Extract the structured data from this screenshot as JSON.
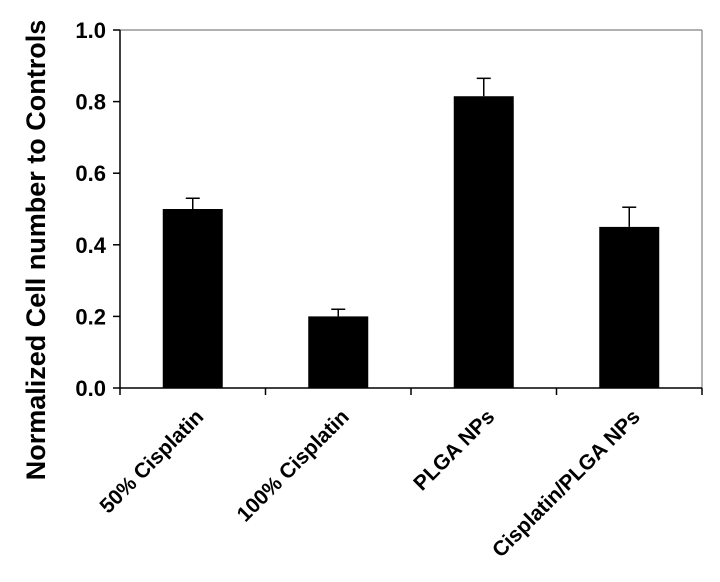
{
  "chart_data": {
    "type": "bar",
    "title": "",
    "xlabel": "",
    "ylabel": "Normalized Cell number to Controls",
    "categories": [
      "50% Cisplatin",
      "100% Cisplatin",
      "PLGA NPs",
      "Cisplatin/PLGA NPs"
    ],
    "values": [
      0.5,
      0.2,
      0.815,
      0.45
    ],
    "error": [
      0.03,
      0.02,
      0.05,
      0.055
    ],
    "ylim": [
      0,
      1.0
    ],
    "yticks": [
      "0.0",
      "0.2",
      "0.4",
      "0.6",
      "0.8",
      "1.0"
    ],
    "grid": false,
    "legend": "none",
    "colors": {
      "bar": "#000000",
      "axis": "#000000",
      "frame": "#808080"
    }
  }
}
